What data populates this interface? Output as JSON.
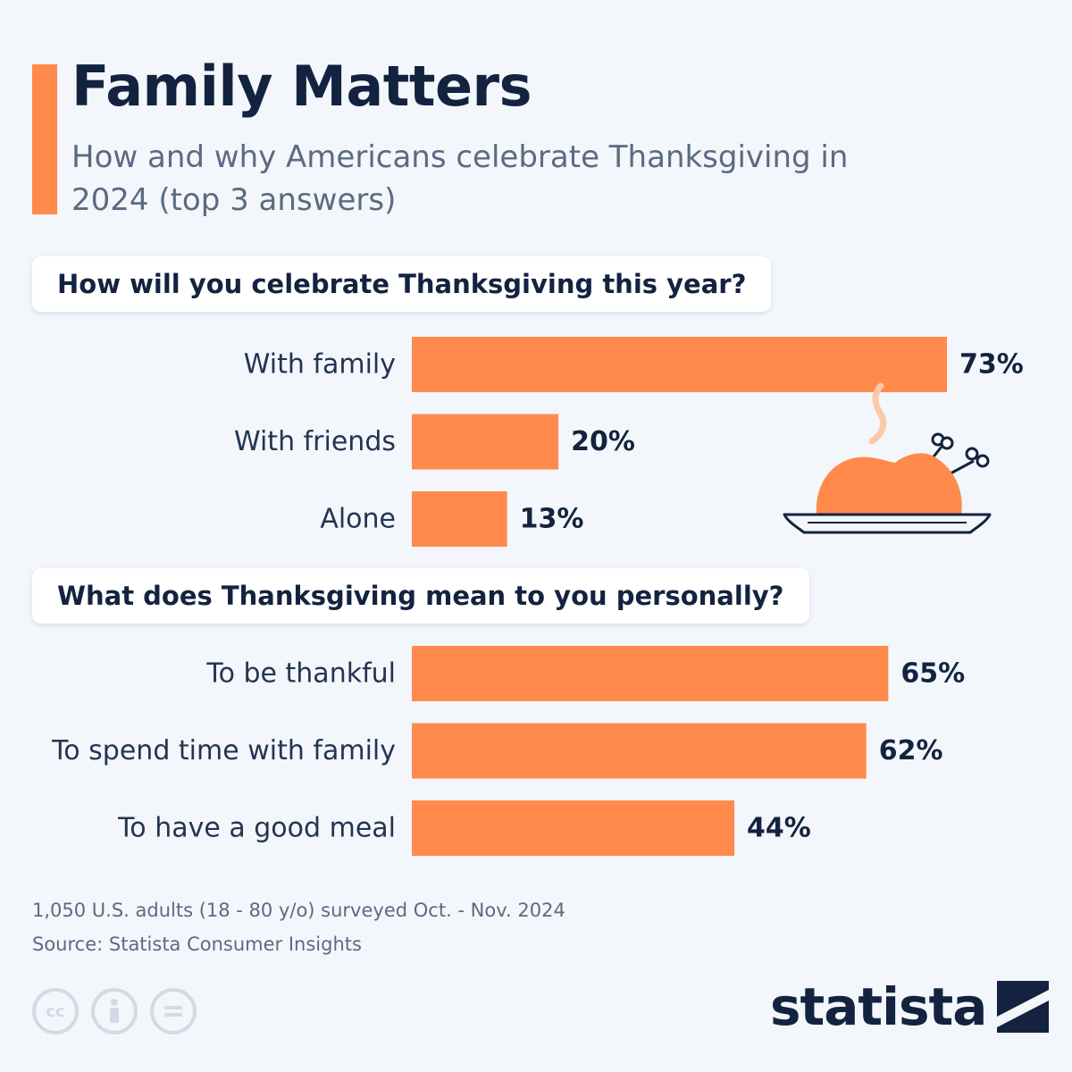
{
  "title": "Family Matters",
  "subtitle": "How and why Americans celebrate Thanksgiving in 2024 (top 3 answers)",
  "colors": {
    "accent": "#ff8a4c",
    "text": "#13233f",
    "background": "#f3f7fb"
  },
  "chart_data": [
    {
      "type": "bar",
      "orientation": "horizontal",
      "title": "How will you celebrate Thanksgiving this year?",
      "categories": [
        "With family",
        "With friends",
        "Alone"
      ],
      "values": [
        73,
        20,
        13
      ],
      "value_labels": [
        "73%",
        "20%",
        "13%"
      ],
      "unit": "%"
    },
    {
      "type": "bar",
      "orientation": "horizontal",
      "title": "What does Thanksgiving mean to you personally?",
      "categories": [
        "To be thankful",
        "To spend time with family",
        "To have a good meal"
      ],
      "values": [
        65,
        62,
        44
      ],
      "value_labels": [
        "65%",
        "62%",
        "44%"
      ],
      "unit": "%"
    }
  ],
  "footer": {
    "note": "1,050 U.S. adults (18 - 80 y/o) surveyed Oct. - Nov. 2024",
    "source": "Source: Statista Consumer Insights",
    "logo": "statista",
    "license_icons": [
      "cc-icon",
      "attribution-icon",
      "no-derivatives-icon"
    ]
  }
}
